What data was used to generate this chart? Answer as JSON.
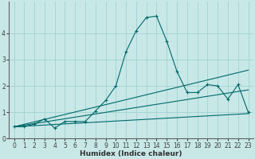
{
  "xlabel": "Humidex (Indice chaleur)",
  "background_color": "#c8e8e8",
  "line_color": "#006868",
  "grid_color": "#a8d4d4",
  "x_values": [
    0,
    1,
    2,
    3,
    4,
    5,
    6,
    7,
    8,
    9,
    10,
    11,
    12,
    13,
    14,
    15,
    16,
    17,
    18,
    19,
    20,
    21,
    22,
    23
  ],
  "series1": [
    0.45,
    0.45,
    0.55,
    0.75,
    0.4,
    0.65,
    0.65,
    0.65,
    1.05,
    1.45,
    2.0,
    3.3,
    4.1,
    4.6,
    4.65,
    3.7,
    2.55,
    1.75,
    1.75,
    2.05,
    2.0,
    1.5,
    2.05,
    1.0
  ],
  "line2_x": [
    0,
    23
  ],
  "line2_y": [
    0.45,
    2.6
  ],
  "line3_x": [
    0,
    23
  ],
  "line3_y": [
    0.45,
    1.85
  ],
  "line4_x": [
    0,
    23
  ],
  "line4_y": [
    0.45,
    0.95
  ],
  "ylim": [
    0.0,
    5.2
  ],
  "xlim": [
    -0.5,
    23.5
  ],
  "yticks": [
    0,
    1,
    2,
    3,
    4
  ],
  "xticks": [
    0,
    1,
    2,
    3,
    4,
    5,
    6,
    7,
    8,
    9,
    10,
    11,
    12,
    13,
    14,
    15,
    16,
    17,
    18,
    19,
    20,
    21,
    22,
    23
  ],
  "tick_fontsize": 5.5,
  "xlabel_fontsize": 6.5
}
